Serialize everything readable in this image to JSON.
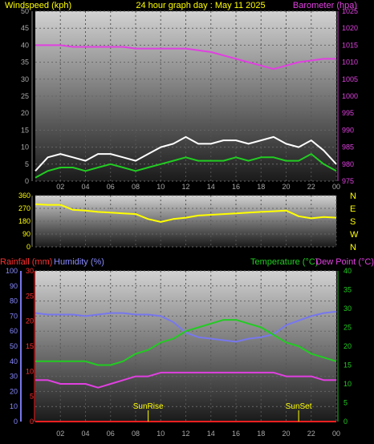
{
  "header": {
    "left_label": "Windspeed (kph)",
    "center_title": "24 hour graph day : May 11 2025",
    "right_label": "Barometer (hpa)"
  },
  "bottom_header": {
    "rainfall_label": "Rainfall (mm)",
    "humidity_label": "Humidity (%)",
    "temperature_label": "Temperature (°C)",
    "dewpoint_label": "Dew Point (°C)"
  },
  "x_ticks": [
    "02",
    "04",
    "06",
    "08",
    "10",
    "12",
    "14",
    "16",
    "18",
    "20",
    "22",
    "00"
  ],
  "panels": {
    "wind": {
      "left_ticks": [
        "0",
        "5",
        "10",
        "15",
        "20",
        "25",
        "30",
        "35",
        "40",
        "45",
        "50"
      ],
      "right_ticks": [
        "975",
        "980",
        "985",
        "990",
        "995",
        "1000",
        "1005",
        "1010",
        "1015",
        "1020",
        "1025"
      ]
    },
    "direction": {
      "left_ticks": [
        "0",
        "90",
        "180",
        "270",
        "360"
      ],
      "compass": [
        "N",
        "W",
        "S",
        "E",
        "N"
      ]
    },
    "bottom": {
      "humidity_ticks": [
        "0",
        "10",
        "20",
        "30",
        "40",
        "50",
        "60",
        "70",
        "80",
        "90",
        "100"
      ],
      "rain_ticks": [
        "0",
        "5",
        "10",
        "15",
        "20",
        "25",
        "30"
      ],
      "temp_ticks": [
        "0",
        "5",
        "10",
        "15",
        "20",
        "25",
        "30",
        "35",
        "40"
      ],
      "sunrise_label": "SunRise",
      "sunset_label": "SunSet"
    }
  },
  "chart_data": [
    {
      "type": "line",
      "title": "24 hour graph day : May 11 2025",
      "x": [
        0,
        1,
        2,
        3,
        4,
        5,
        6,
        7,
        8,
        9,
        10,
        11,
        12,
        13,
        14,
        15,
        16,
        17,
        18,
        19,
        20,
        21,
        22,
        23,
        24
      ],
      "xlabel": "",
      "ylabel": "Windspeed (kph)",
      "ylim": [
        0,
        50
      ],
      "y2label": "Barometer (hpa)",
      "y2lim": [
        975,
        1025
      ],
      "series": [
        {
          "name": "Windspeed gust",
          "axis": "left",
          "color": "#ffffff",
          "values": [
            3,
            7,
            8,
            7,
            6,
            8,
            8,
            7,
            6,
            8,
            10,
            11,
            13,
            11,
            11,
            12,
            12,
            11,
            12,
            13,
            11,
            10,
            12,
            9,
            5
          ]
        },
        {
          "name": "Windspeed average",
          "axis": "left",
          "color": "#22cc22",
          "values": [
            1,
            3,
            4,
            4,
            3,
            4,
            5,
            4,
            3,
            4,
            5,
            6,
            7,
            6,
            6,
            6,
            7,
            6,
            7,
            7,
            6,
            6,
            8,
            5,
            3
          ]
        },
        {
          "name": "Barometer",
          "axis": "right",
          "color": "#e040e0",
          "values": [
            1015,
            1015,
            1015,
            1014.5,
            1014.5,
            1014.5,
            1014.5,
            1014.5,
            1014,
            1014,
            1014,
            1014,
            1014,
            1013.5,
            1013,
            1012,
            1011,
            1010,
            1009,
            1008,
            1009,
            1010,
            1010.5,
            1011,
            1011
          ]
        }
      ]
    },
    {
      "type": "line",
      "x": [
        0,
        1,
        2,
        3,
        4,
        5,
        6,
        7,
        8,
        9,
        10,
        11,
        12,
        13,
        14,
        15,
        16,
        17,
        18,
        19,
        20,
        21,
        22,
        23,
        24
      ],
      "ylabel": "Wind direction",
      "ylim": [
        0,
        360
      ],
      "series": [
        {
          "name": "Wind direction",
          "color": "#ffff00",
          "values": [
            300,
            295,
            295,
            260,
            255,
            245,
            240,
            235,
            230,
            195,
            175,
            195,
            205,
            220,
            225,
            230,
            235,
            240,
            245,
            250,
            255,
            215,
            200,
            210,
            205
          ]
        }
      ]
    },
    {
      "type": "line",
      "x": [
        0,
        1,
        2,
        3,
        4,
        5,
        6,
        7,
        8,
        9,
        10,
        11,
        12,
        13,
        14,
        15,
        16,
        17,
        18,
        19,
        20,
        21,
        22,
        23,
        24
      ],
      "ylim_humidity": [
        0,
        100
      ],
      "ylim_rainfall": [
        0,
        30
      ],
      "ylim_temperature": [
        0,
        40
      ],
      "series": [
        {
          "name": "Humidity",
          "axis": "humidity",
          "color": "#7777ee",
          "values": [
            72,
            71,
            71,
            71,
            70,
            71,
            72,
            72,
            71,
            71,
            70,
            66,
            59,
            56,
            55,
            54,
            53,
            55,
            56,
            58,
            64,
            67,
            70,
            72,
            73
          ]
        },
        {
          "name": "Temperature",
          "axis": "temperature",
          "color": "#22cc22",
          "values": [
            16,
            16,
            16,
            16,
            16,
            15,
            15,
            16,
            18,
            19,
            21,
            22,
            24,
            25,
            26,
            27,
            27,
            26,
            25,
            23,
            21,
            20,
            18,
            17,
            16
          ]
        },
        {
          "name": "Dew Point",
          "axis": "temperature",
          "color": "#e040e0",
          "values": [
            11,
            11,
            10,
            10,
            10,
            9,
            10,
            11,
            12,
            12,
            13,
            13,
            13,
            13,
            13,
            13,
            13,
            13,
            13,
            13,
            12,
            12,
            12,
            11,
            11
          ]
        },
        {
          "name": "Rainfall",
          "axis": "rainfall",
          "color": "#ff2020",
          "values": [
            0,
            0,
            0,
            0,
            0,
            0,
            0,
            0,
            0,
            0,
            0,
            0,
            0,
            0,
            0,
            0,
            0,
            0,
            0,
            0,
            0,
            0,
            0,
            0,
            0
          ]
        }
      ],
      "sunrise_hour": 9.0,
      "sunset_hour": 21.0
    }
  ]
}
